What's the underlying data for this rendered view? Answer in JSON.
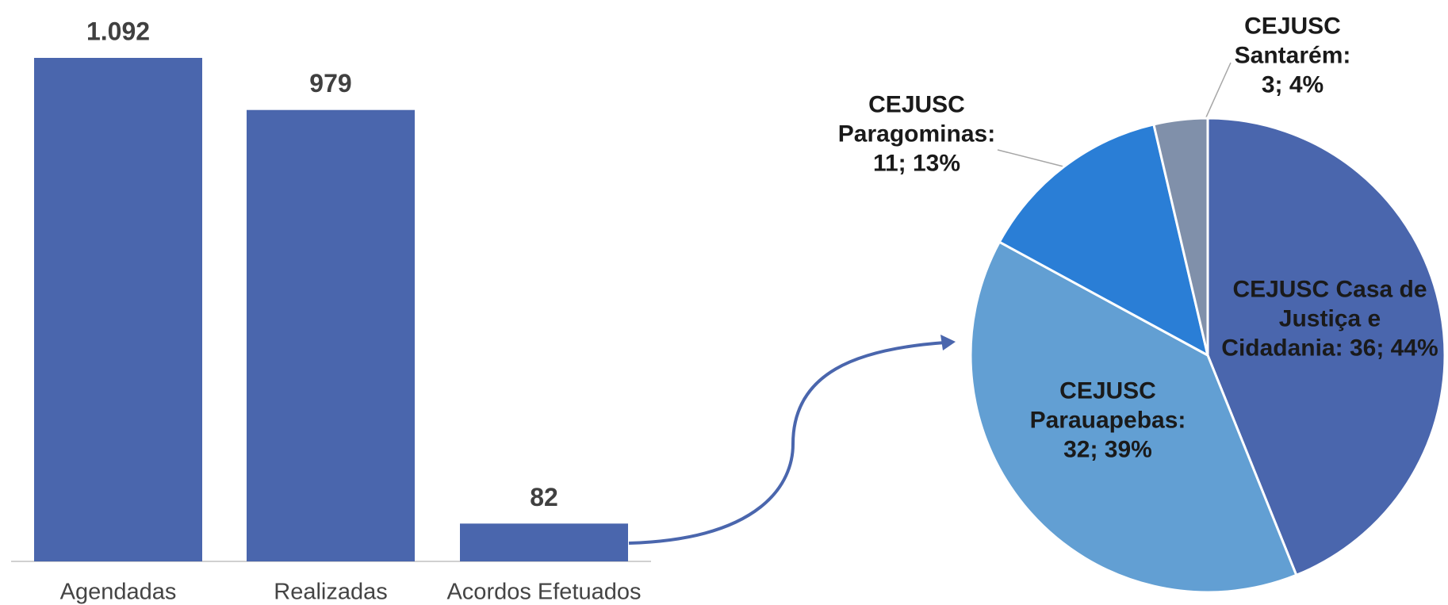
{
  "chart_data": [
    {
      "type": "bar",
      "categories": [
        "Agendadas",
        "Realizadas",
        "Acordos Efetuados"
      ],
      "values": [
        1092,
        979,
        82
      ],
      "value_labels": [
        "1.092",
        "979",
        "82"
      ],
      "color": "#4a66ad"
    },
    {
      "type": "pie",
      "values": [
        36,
        32,
        11,
        3
      ],
      "value_labels": [
        "CEJUSC Casa de\nJustiça e\nCidadania: 36; 44%",
        "CEJUSC\nParauapebas:\n32; 39%",
        "CEJUSC\nParagominas:\n11; 13%",
        "CEJUSC\nSantarém:\n3; 4%"
      ],
      "colors": [
        "#4a66ad",
        "#629fd3",
        "#2a7ed6",
        "#8090aa"
      ]
    }
  ]
}
